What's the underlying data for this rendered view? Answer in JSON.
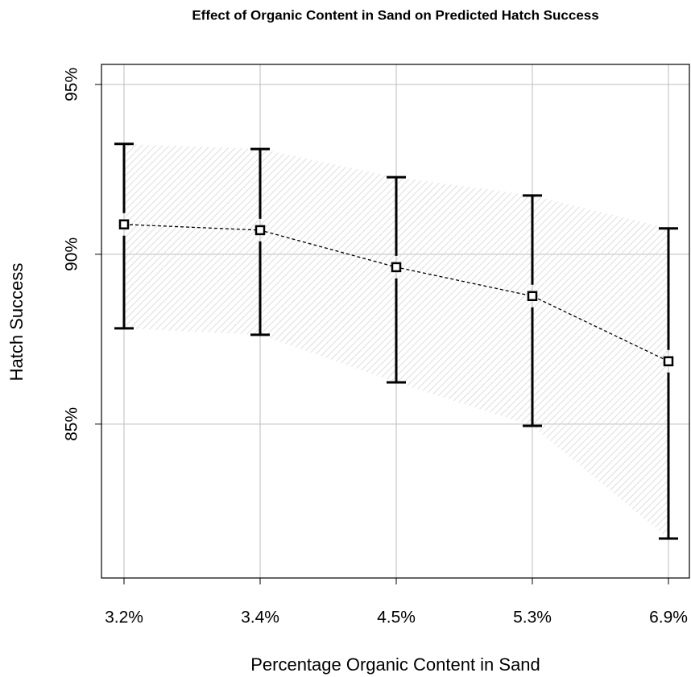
{
  "chart_data": {
    "type": "errorbar-line",
    "title": "Effect of Organic Content in Sand on Predicted Hatch Success",
    "x_label": "Percentage Organic Content in Sand",
    "y_label": "Hatch Success",
    "categories": [
      "3.2%",
      "3.4%",
      "4.5%",
      "5.3%",
      "6.9%"
    ],
    "values": [
      90.88,
      90.71,
      89.62,
      88.77,
      86.85
    ],
    "lower": [
      87.82,
      87.63,
      86.23,
      84.95,
      81.63
    ],
    "upper": [
      93.25,
      93.1,
      92.27,
      91.73,
      90.76
    ],
    "color": "#000000",
    "band_color": "#d9d4d4",
    "ylim": [
      80.47,
      95.59
    ],
    "yticks": [
      {
        "value": 85,
        "label": "85%"
      },
      {
        "value": 90,
        "label": "90%"
      },
      {
        "value": 95,
        "label": "95%"
      }
    ],
    "grid": true
  }
}
